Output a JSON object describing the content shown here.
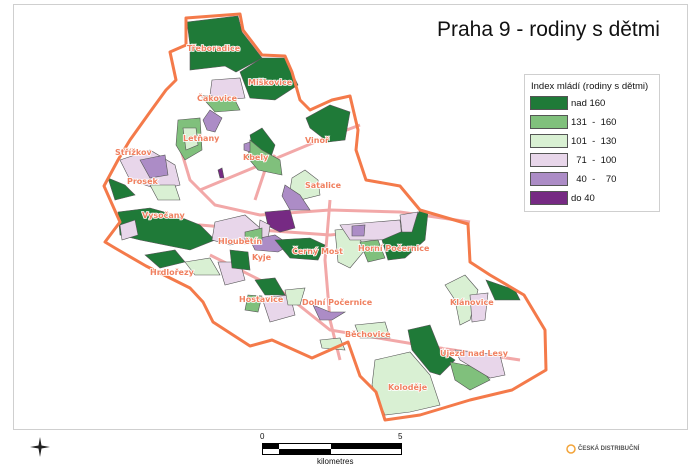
{
  "title": "Praha 9 - rodiny s dětmi",
  "legend": {
    "title": "Index mládí (rodiny s dětmi)",
    "classes": [
      {
        "label": "nad 160",
        "color": "#1f7a38"
      },
      {
        "label": "131  -  160",
        "color": "#80c07c"
      },
      {
        "label": "101  -  130",
        "color": "#d9f0d3"
      },
      {
        "label": "  71  -  100",
        "color": "#e8d6ea"
      },
      {
        "label": "  40  -    70",
        "color": "#ac8cc6"
      },
      {
        "label": "do 40",
        "color": "#762a83"
      }
    ]
  },
  "boundary_color": "#f47a4a",
  "road_color": "#f0a0a0",
  "places": [
    "Třeboradice",
    "Miškovice",
    "Čakovice",
    "Letňany",
    "Vinoř",
    "Kbely",
    "Střížkov",
    "Prosek",
    "Satalice",
    "Vysočany",
    "Hloubětín",
    "Kyje",
    "Černý Most",
    "Horní Počernice",
    "Hrdlořezy",
    "Hostavice",
    "Dolní Počernice",
    "Klánovice",
    "Běchovice",
    "Újezd nad Lesy",
    "Koloděje"
  ],
  "scale_bar": {
    "start": "0",
    "end": "5",
    "unit": "kilometres"
  },
  "north_arrow_icon": "compass-rose-icon",
  "logo": "ČESKÁ DISTRIBUČNÍ"
}
